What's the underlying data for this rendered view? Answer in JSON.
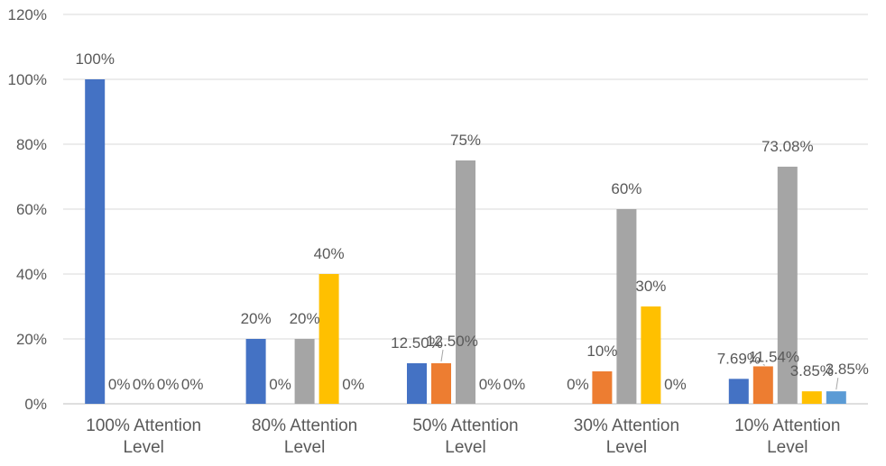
{
  "chart_data": {
    "type": "bar",
    "title": "",
    "xlabel": "",
    "ylabel": "",
    "ylim": [
      0,
      120
    ],
    "yticks": [
      0,
      20,
      40,
      60,
      80,
      100,
      120
    ],
    "ytick_labels": [
      "0%",
      "20%",
      "40%",
      "60%",
      "80%",
      "100%",
      "120%"
    ],
    "grid": true,
    "legend": "none",
    "categories": [
      "100% Attention Level",
      "80% Attention Level",
      "50% Attention Level",
      "30% Attention Level",
      "10% Attention Level"
    ],
    "category_lines": [
      [
        "100% Attention",
        "Level"
      ],
      [
        "80% Attention",
        "Level"
      ],
      [
        "50% Attention",
        "Level"
      ],
      [
        "30% Attention",
        "Level"
      ],
      [
        "10% Attention",
        "Level"
      ]
    ],
    "series": [
      {
        "color": "#4472c4",
        "values": [
          100,
          20,
          12.5,
          0,
          7.69
        ],
        "labels": [
          "100%",
          "20%",
          "12.50%",
          "0%",
          "7.69%"
        ]
      },
      {
        "color": "#ed7d31",
        "values": [
          0,
          0,
          12.5,
          10,
          11.54
        ],
        "labels": [
          "0%",
          "0%",
          "12.50%",
          "10%",
          "11.54%"
        ]
      },
      {
        "color": "#a5a5a5",
        "values": [
          0,
          20,
          75,
          60,
          73.08
        ],
        "labels": [
          "0%",
          "20%",
          "75%",
          "60%",
          "73.08%"
        ]
      },
      {
        "color": "#ffc000",
        "values": [
          0,
          40,
          0,
          30,
          3.85
        ],
        "labels": [
          "0%",
          "40%",
          "0%",
          "30%",
          "3.85%"
        ]
      },
      {
        "color": "#5b9bd5",
        "values": [
          0,
          0,
          0,
          0,
          3.85
        ],
        "labels": [
          "0%",
          "0%",
          "0%",
          "0%",
          "3.85%"
        ]
      }
    ]
  }
}
